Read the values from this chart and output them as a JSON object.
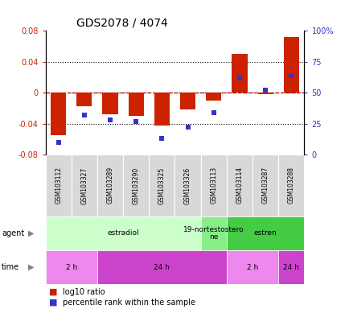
{
  "title": "GDS2078 / 4074",
  "samples": [
    "GSM103112",
    "GSM103327",
    "GSM103289",
    "GSM103290",
    "GSM103325",
    "GSM103326",
    "GSM103113",
    "GSM103114",
    "GSM103287",
    "GSM103288"
  ],
  "log10_ratio": [
    -0.055,
    -0.018,
    -0.028,
    -0.03,
    -0.042,
    -0.022,
    -0.01,
    0.05,
    -0.002,
    0.072
  ],
  "percentile_rank": [
    10,
    32,
    28,
    27,
    13,
    22,
    34,
    62,
    52,
    64
  ],
  "ylim": [
    -0.08,
    0.08
  ],
  "yticks_left": [
    -0.08,
    -0.04,
    0,
    0.04,
    0.08
  ],
  "yticks_right": [
    0,
    25,
    50,
    75,
    100
  ],
  "bar_color": "#cc2200",
  "pct_color": "#3333cc",
  "zero_line_color": "#cc0000",
  "agent_groups": [
    {
      "label": "estradiol",
      "start": 0,
      "end": 6,
      "color": "#ccffcc"
    },
    {
      "label": "19-nortestostero\nne",
      "start": 6,
      "end": 7,
      "color": "#88ee88"
    },
    {
      "label": "estren",
      "start": 7,
      "end": 10,
      "color": "#44cc44"
    }
  ],
  "time_groups": [
    {
      "label": "2 h",
      "start": 0,
      "end": 2,
      "color": "#ee88ee"
    },
    {
      "label": "24 h",
      "start": 2,
      "end": 7,
      "color": "#cc44cc"
    },
    {
      "label": "2 h",
      "start": 7,
      "end": 9,
      "color": "#ee88ee"
    },
    {
      "label": "24 h",
      "start": 9,
      "end": 10,
      "color": "#cc44cc"
    }
  ],
  "legend_items": [
    {
      "label": "log10 ratio",
      "color": "#cc2200"
    },
    {
      "label": "percentile rank within the sample",
      "color": "#3333cc"
    }
  ]
}
